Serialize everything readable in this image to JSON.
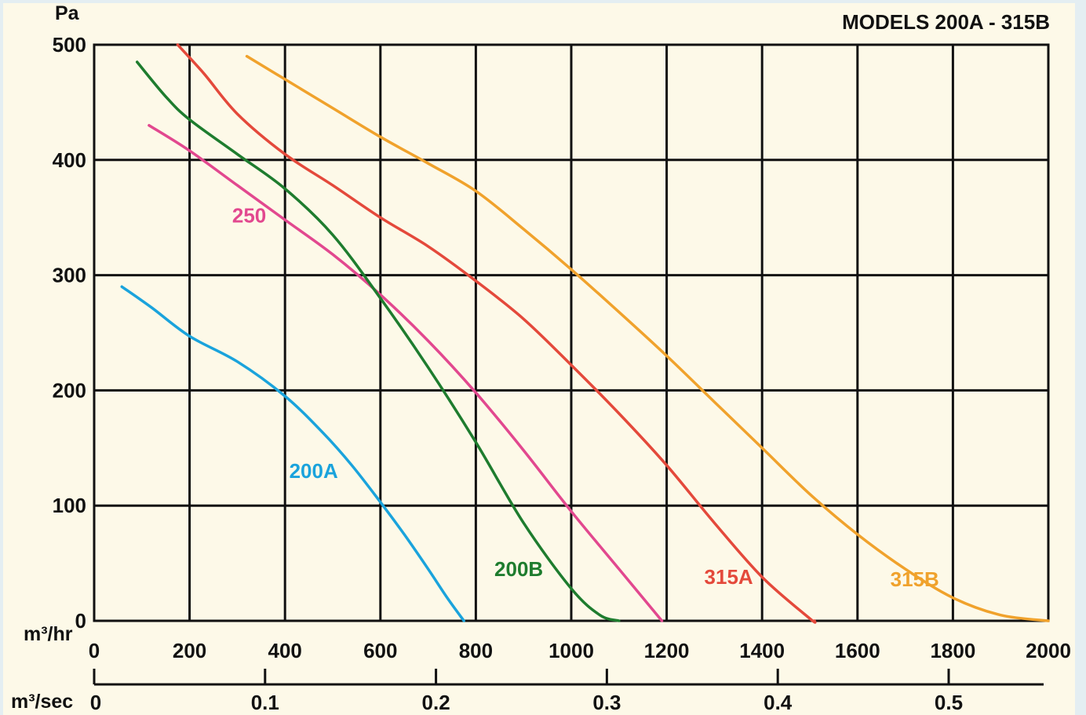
{
  "chart_data": {
    "type": "line",
    "title": "MODELS 200A - 315B",
    "ylabel": "Pa",
    "xlabel": "m³/hr",
    "x2label": "m³/sec",
    "xlim": [
      0,
      2000
    ],
    "ylim": [
      0,
      500
    ],
    "xticks": [
      "0",
      "200",
      "400",
      "600",
      "800",
      "1000",
      "1200",
      "1400",
      "1600",
      "1800",
      "2000"
    ],
    "yticks": [
      "0",
      "100",
      "200",
      "300",
      "400",
      "500"
    ],
    "x2ticks": [
      {
        "label": "0",
        "value": 0
      },
      {
        "label": "0.1",
        "value": 0.1
      },
      {
        "label": "0.2",
        "value": 0.2
      },
      {
        "label": "0.3",
        "value": 0.3
      },
      {
        "label": "0.4",
        "value": 0.4
      },
      {
        "label": "0.5",
        "value": 0.5
      }
    ],
    "grid": true,
    "series": [
      {
        "name": "200A",
        "color": "#1aa3dc",
        "x": [
          58,
          120,
          200,
          300,
          400,
          480,
          540,
          600,
          650,
          700,
          740,
          775
        ],
        "y": [
          290,
          272,
          247,
          225,
          195,
          163,
          135,
          103,
          75,
          45,
          20,
          0
        ],
        "label_at": [
          460,
          130
        ]
      },
      {
        "name": "250",
        "color": "#e2488f",
        "x": [
          115,
          200,
          300,
          400,
          500,
          600,
          700,
          800,
          900,
          1000,
          1100,
          1190
        ],
        "y": [
          430,
          408,
          378,
          348,
          318,
          283,
          243,
          198,
          148,
          95,
          45,
          0
        ],
        "label_at": [
          325,
          352
        ]
      },
      {
        "name": "200B",
        "color": "#1e7c2e",
        "x": [
          90,
          150,
          200,
          300,
          400,
          500,
          600,
          700,
          800,
          900,
          1000,
          1060,
          1100
        ],
        "y": [
          485,
          455,
          435,
          405,
          375,
          335,
          280,
          220,
          155,
          85,
          28,
          5,
          0
        ],
        "label_at": [
          890,
          45
        ]
      },
      {
        "name": "315A",
        "color": "#e4493b",
        "x": [
          175,
          230,
          300,
          400,
          500,
          600,
          700,
          800,
          900,
          1000,
          1100,
          1200,
          1300,
          1400,
          1500,
          1510
        ],
        "y": [
          500,
          475,
          440,
          405,
          378,
          350,
          325,
          295,
          262,
          222,
          180,
          135,
          85,
          38,
          2,
          0
        ],
        "label_at": [
          1330,
          38
        ]
      },
      {
        "name": "315B",
        "color": "#f0a22c",
        "x": [
          320,
          400,
          500,
          600,
          700,
          800,
          900,
          1000,
          1100,
          1200,
          1300,
          1400,
          1500,
          1600,
          1700,
          1800,
          1900,
          2000
        ],
        "y": [
          490,
          470,
          445,
          420,
          397,
          373,
          340,
          305,
          268,
          230,
          190,
          150,
          110,
          75,
          45,
          20,
          5,
          0
        ],
        "label_at": [
          1720,
          36
        ]
      }
    ]
  }
}
